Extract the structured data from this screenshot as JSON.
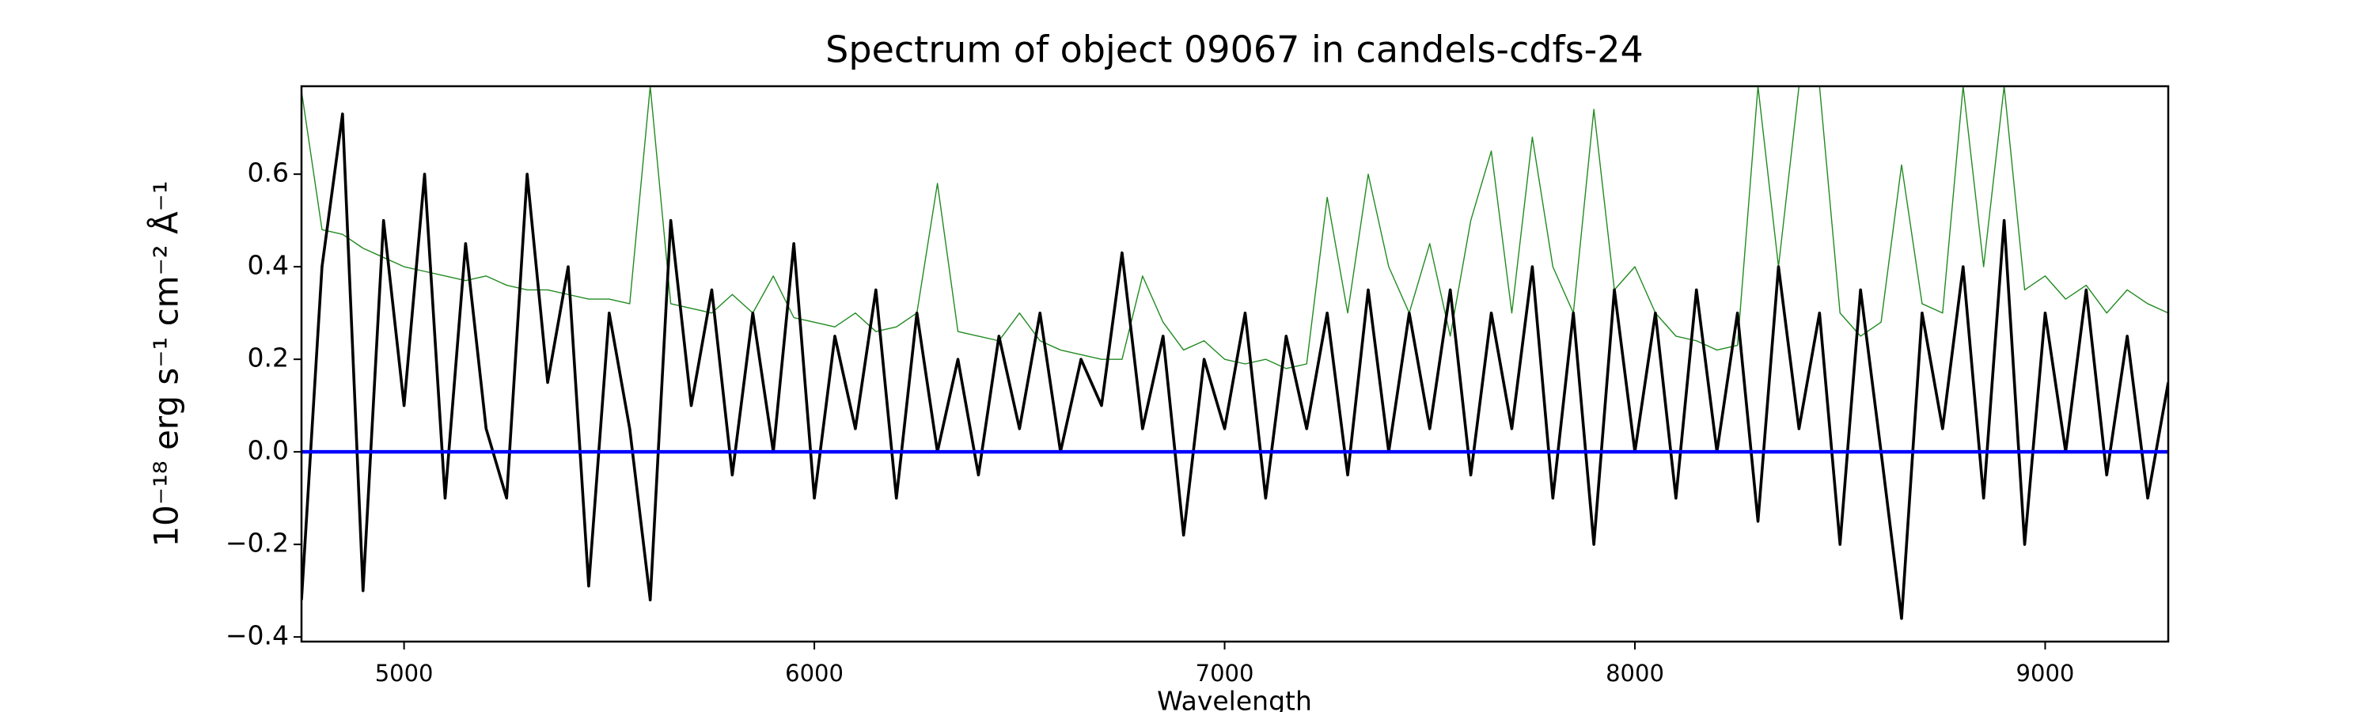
{
  "chart_data": {
    "type": "line",
    "title": "Spectrum of object 09067 in candels-cdfs-24",
    "xlabel": "Wavelength",
    "ylabel": "10⁻¹⁸ erg s⁻¹ cm⁻² Å⁻¹",
    "x": [
      4750,
      4800,
      4850,
      4900,
      4950,
      5000,
      5050,
      5100,
      5150,
      5200,
      5250,
      5300,
      5350,
      5400,
      5450,
      5500,
      5550,
      5600,
      5650,
      5700,
      5750,
      5800,
      5850,
      5900,
      5950,
      6000,
      6050,
      6100,
      6150,
      6200,
      6250,
      6300,
      6350,
      6400,
      6450,
      6500,
      6550,
      6600,
      6650,
      6700,
      6750,
      6800,
      6850,
      6900,
      6950,
      7000,
      7050,
      7100,
      7150,
      7200,
      7250,
      7300,
      7350,
      7400,
      7450,
      7500,
      7550,
      7600,
      7650,
      7700,
      7750,
      7800,
      7850,
      7900,
      7950,
      8000,
      8050,
      8100,
      8150,
      8200,
      8250,
      8300,
      8350,
      8400,
      8450,
      8500,
      8550,
      8600,
      8650,
      8700,
      8750,
      8800,
      8850,
      8900,
      8950,
      9000,
      9050,
      9100,
      9150,
      9200,
      9250,
      9300
    ],
    "series": [
      {
        "color": "#228b22",
        "values": [
          0.78,
          0.48,
          0.47,
          0.44,
          0.42,
          0.4,
          0.39,
          0.38,
          0.37,
          0.38,
          0.36,
          0.35,
          0.35,
          0.34,
          0.33,
          0.33,
          0.32,
          0.79,
          0.32,
          0.31,
          0.3,
          0.34,
          0.3,
          0.38,
          0.29,
          0.28,
          0.27,
          0.3,
          0.26,
          0.27,
          0.3,
          0.58,
          0.26,
          0.25,
          0.24,
          0.3,
          0.24,
          0.22,
          0.21,
          0.2,
          0.2,
          0.38,
          0.28,
          0.22,
          0.24,
          0.2,
          0.19,
          0.2,
          0.18,
          0.19,
          0.55,
          0.3,
          0.6,
          0.4,
          0.3,
          0.45,
          0.25,
          0.5,
          0.65,
          0.3,
          0.68,
          0.4,
          0.3,
          0.74,
          0.35,
          0.4,
          0.3,
          0.25,
          0.24,
          0.22,
          0.23,
          0.79,
          0.4,
          0.79,
          0.79,
          0.3,
          0.25,
          0.28,
          0.62,
          0.32,
          0.3,
          0.79,
          0.4,
          0.79,
          0.35,
          0.38,
          0.33,
          0.36,
          0.3,
          0.35,
          0.32,
          0.3
        ]
      },
      {
        "color": "#000000",
        "values": [
          -0.32,
          0.4,
          0.73,
          -0.3,
          0.5,
          0.1,
          0.6,
          -0.1,
          0.45,
          0.05,
          -0.1,
          0.6,
          0.15,
          0.4,
          -0.29,
          0.3,
          0.05,
          -0.32,
          0.5,
          0.1,
          0.35,
          -0.05,
          0.3,
          0.0,
          0.45,
          -0.1,
          0.25,
          0.05,
          0.35,
          -0.1,
          0.3,
          0.0,
          0.2,
          -0.05,
          0.25,
          0.05,
          0.3,
          0.0,
          0.2,
          0.1,
          0.43,
          0.05,
          0.25,
          -0.18,
          0.2,
          0.05,
          0.3,
          -0.1,
          0.25,
          0.05,
          0.3,
          -0.05,
          0.35,
          0.0,
          0.3,
          0.05,
          0.35,
          -0.05,
          0.3,
          0.05,
          0.4,
          -0.1,
          0.3,
          -0.2,
          0.35,
          0.0,
          0.3,
          -0.1,
          0.35,
          0.0,
          0.3,
          -0.15,
          0.4,
          0.05,
          0.3,
          -0.2,
          0.35,
          0.0,
          -0.36,
          0.3,
          0.05,
          0.4,
          -0.1,
          0.5,
          -0.2,
          0.3,
          0.0,
          0.35,
          -0.05,
          0.25,
          -0.1,
          0.15
        ]
      },
      {
        "color": "#0000ff",
        "values": [
          0,
          0,
          0,
          0,
          0,
          0,
          0,
          0,
          0,
          0,
          0,
          0,
          0,
          0,
          0,
          0,
          0,
          0,
          0,
          0,
          0,
          0,
          0,
          0,
          0,
          0,
          0,
          0,
          0,
          0,
          0,
          0,
          0,
          0,
          0,
          0,
          0,
          0,
          0,
          0,
          0,
          0,
          0,
          0,
          0,
          0,
          0,
          0,
          0,
          0,
          0,
          0,
          0,
          0,
          0,
          0,
          0,
          0,
          0,
          0,
          0,
          0,
          0,
          0,
          0,
          0,
          0,
          0,
          0,
          0,
          0,
          0,
          0,
          0,
          0,
          0,
          0,
          0,
          0,
          0,
          0,
          0,
          0,
          0,
          0,
          0,
          0,
          0,
          0,
          0,
          0,
          0
        ]
      }
    ],
    "xlim": [
      4750,
      9300
    ],
    "xticks": [
      5000,
      6000,
      7000,
      8000,
      9000
    ],
    "ylim": [
      -0.41,
      0.79
    ],
    "yticks": [
      {
        "value": -0.4,
        "label": "−0.4"
      },
      {
        "value": -0.2,
        "label": "−0.2"
      },
      {
        "value": 0,
        "label": "0.0"
      },
      {
        "value": 0.2,
        "label": "0.2"
      },
      {
        "value": 0.4,
        "label": "0.4"
      },
      {
        "value": 0.6,
        "label": "0.6"
      }
    ]
  }
}
